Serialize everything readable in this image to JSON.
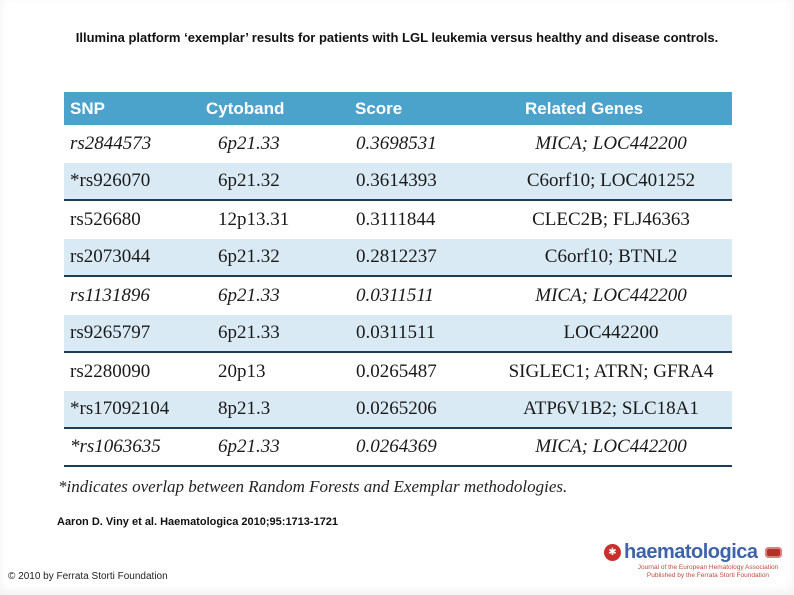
{
  "title": "Illumina platform ‘exemplar’ results for patients with LGL leukemia versus healthy and disease controls.",
  "table": {
    "headers": [
      "SNP",
      "Cytoband",
      "Score",
      "Related Genes"
    ],
    "rows": [
      {
        "snp": "rs2844573",
        "cytoband": "6p21.33",
        "score": "0.3698531",
        "genes": "MICA; LOC442200",
        "italic": true
      },
      {
        "snp": "*rs926070",
        "cytoband": "6p21.32",
        "score": "0.3614393",
        "genes": "C6orf10; LOC401252",
        "italic": false
      },
      {
        "snp": "rs526680",
        "cytoband": "12p13.31",
        "score": "0.3111844",
        "genes": "CLEC2B; FLJ46363",
        "italic": false
      },
      {
        "snp": "rs2073044",
        "cytoband": "6p21.32",
        "score": "0.2812237",
        "genes": "C6orf10; BTNL2",
        "italic": false
      },
      {
        "snp": "rs1131896",
        "cytoband": "6p21.33",
        "score": "0.0311511",
        "genes": "MICA; LOC442200",
        "italic": true
      },
      {
        "snp": "rs9265797",
        "cytoband": "6p21.33",
        "score": "0.0311511",
        "genes": "LOC442200",
        "italic": false
      },
      {
        "snp": "rs2280090",
        "cytoband": "20p13",
        "score": "0.0265487",
        "genes": "SIGLEC1; ATRN; GFRA4",
        "italic": false
      },
      {
        "snp": "*rs17092104",
        "cytoband": "8p21.3",
        "score": "0.0265206",
        "genes": "ATP6V1B2; SLC18A1",
        "italic": false
      },
      {
        "snp": "*rs1063635",
        "cytoband": "6p21.33",
        "score": "0.0264369",
        "genes": "MICA; LOC442200",
        "italic": true
      }
    ],
    "footnote": "*indicates overlap between Random Forests and Exemplar methodologies."
  },
  "citation": "Aaron D. Viny et al. Haematologica 2010;95:1713-1721",
  "copyright": "© 2010 by Ferrata Storti Foundation",
  "logo": {
    "name": "haematologica",
    "tagline_line1": "Journal of the European Hematology Association",
    "tagline_line2": "Published by the Ferrata Storti Foundation"
  },
  "icons": {
    "flower": "✱"
  },
  "colors": {
    "header_bg": "#4BA3CC",
    "row_shade": "#D9EAF4",
    "divider": "#1D3D57",
    "logo_blue": "#3F63A9",
    "logo_red": "#C9302C"
  }
}
